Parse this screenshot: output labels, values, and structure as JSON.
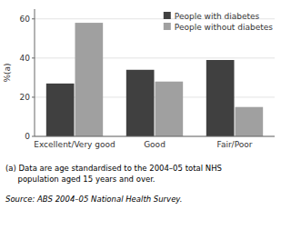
{
  "chart_data": {
    "type": "bar",
    "categories": [
      "Excellent/Very good",
      "Good",
      "Fair/Poor"
    ],
    "series": [
      {
        "name": "People with diabetes",
        "color": "#404040",
        "values": [
          27,
          34,
          39
        ]
      },
      {
        "name": "People without diabetes",
        "color": "#a0a0a0",
        "values": [
          58,
          28,
          15
        ]
      }
    ],
    "ylabel": "%(a)",
    "ylim": [
      0,
      65
    ],
    "yticks": [
      0,
      20,
      40,
      60
    ],
    "grid": true,
    "legend": "upper right",
    "annotations": [
      "(a) Data are age standardised to the 2004–05 total NHS",
      "     population aged 15 years and over.",
      "Source: ABS 2004–05 National Health Survey."
    ]
  }
}
